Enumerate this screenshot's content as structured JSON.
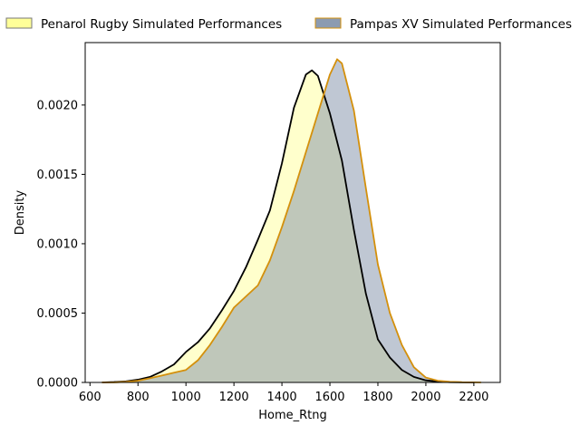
{
  "chart_data": {
    "type": "area",
    "title": "",
    "xlabel": "Home_Rtng",
    "ylabel": "Density",
    "xlim": [
      580,
      2310
    ],
    "ylim": [
      0,
      0.00245
    ],
    "xticks": [
      600,
      800,
      1000,
      1200,
      1400,
      1600,
      1800,
      2000,
      2200
    ],
    "yticks": [
      0.0,
      0.0005,
      0.001,
      0.0015,
      0.002
    ],
    "ytick_labels": [
      "0.0000",
      "0.0005",
      "0.0010",
      "0.0015",
      "0.0020"
    ],
    "grid": false,
    "legend_placement": "top, outside, two columns",
    "series": [
      {
        "name": "Penarol Rugby Simulated Performances",
        "fill_color": "#ffff99",
        "line_color": "#000000",
        "x": [
          650,
          700,
          750,
          800,
          850,
          900,
          950,
          1000,
          1050,
          1100,
          1150,
          1200,
          1250,
          1300,
          1350,
          1400,
          1450,
          1500,
          1525,
          1550,
          1600,
          1650,
          1700,
          1750,
          1800,
          1850,
          1900,
          1950,
          2000,
          2050,
          2100,
          2150,
          2200
        ],
        "y": [
          0.0,
          3e-06,
          8e-06,
          2e-05,
          4e-05,
          8e-05,
          0.00013,
          0.00022,
          0.00029,
          0.00039,
          0.00052,
          0.00066,
          0.00083,
          0.00103,
          0.00124,
          0.00158,
          0.00198,
          0.00222,
          0.00225,
          0.00221,
          0.00194,
          0.0016,
          0.0011,
          0.00064,
          0.00031,
          0.00018,
          9e-05,
          4e-05,
          1.5e-05,
          6e-06,
          2e-06,
          1e-06,
          0.0
        ]
      },
      {
        "name": "Pampas XV Simulated Performances",
        "fill_color": "#8090a8",
        "line_color": "#d4900c",
        "x": [
          650,
          700,
          750,
          800,
          850,
          900,
          950,
          1000,
          1050,
          1100,
          1150,
          1200,
          1250,
          1300,
          1350,
          1400,
          1450,
          1500,
          1550,
          1600,
          1630,
          1650,
          1700,
          1750,
          1800,
          1850,
          1900,
          1950,
          2000,
          2050,
          2100,
          2150,
          2200,
          2230
        ],
        "y": [
          0.0,
          0.0,
          5e-06,
          1.2e-05,
          3e-05,
          5e-05,
          7e-05,
          9e-05,
          0.00016,
          0.00027,
          0.0004,
          0.00054,
          0.00062,
          0.0007,
          0.00088,
          0.00112,
          0.00138,
          0.00166,
          0.00194,
          0.00222,
          0.00233,
          0.0023,
          0.00196,
          0.0014,
          0.00085,
          0.0005,
          0.00027,
          0.00011,
          3.5e-05,
          1.2e-05,
          5e-06,
          2e-06,
          1e-06,
          0.0
        ]
      }
    ]
  }
}
